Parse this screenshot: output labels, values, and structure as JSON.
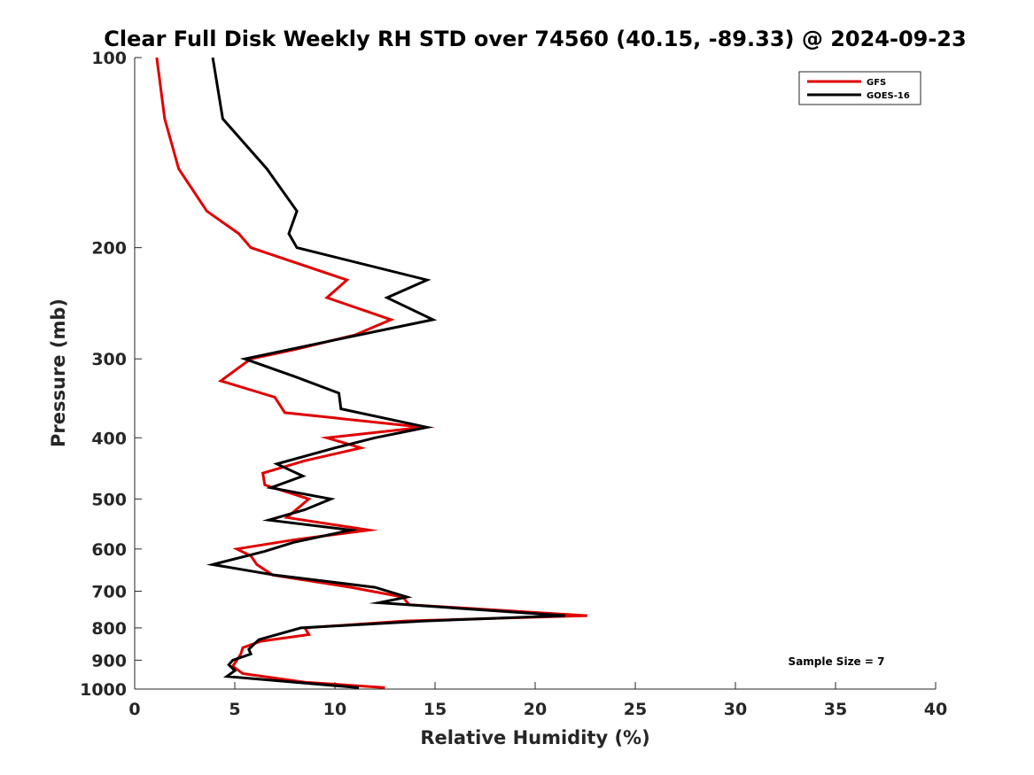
{
  "chart_data": {
    "type": "line",
    "title": "Clear Full Disk Weekly RH STD over 74560 (40.15, -89.33) @ 2024-09-23",
    "xlabel": "Relative Humidity (%)",
    "ylabel": "Pressure (mb)",
    "xlim": [
      0,
      40
    ],
    "ylim": [
      100,
      1000
    ],
    "y_scale": "log",
    "y_reversed": true,
    "x_ticks": [
      0,
      5,
      10,
      15,
      20,
      25,
      30,
      35,
      40
    ],
    "y_ticks": [
      100,
      200,
      300,
      400,
      500,
      600,
      700,
      800,
      900,
      1000
    ],
    "grid": false,
    "legend_position": "top-right",
    "annotation": "Sample Size = 7",
    "series": [
      {
        "name": "GFS",
        "color": "#e00000",
        "points": [
          [
            1.1,
            100
          ],
          [
            1.5,
            125
          ],
          [
            2.2,
            150
          ],
          [
            3.6,
            175
          ],
          [
            5.2,
            190
          ],
          [
            5.8,
            200
          ],
          [
            10.6,
            225
          ],
          [
            9.6,
            240
          ],
          [
            12.8,
            260
          ],
          [
            11.0,
            275
          ],
          [
            8.0,
            290
          ],
          [
            5.8,
            300
          ],
          [
            4.3,
            325
          ],
          [
            7.0,
            345
          ],
          [
            7.5,
            365
          ],
          [
            14.4,
            385
          ],
          [
            9.6,
            400
          ],
          [
            11.3,
            415
          ],
          [
            8.5,
            435
          ],
          [
            6.4,
            455
          ],
          [
            6.5,
            475
          ],
          [
            8.7,
            500
          ],
          [
            7.6,
            535
          ],
          [
            11.7,
            560
          ],
          [
            8.0,
            580
          ],
          [
            5.1,
            600
          ],
          [
            5.8,
            615
          ],
          [
            6.1,
            635
          ],
          [
            6.9,
            660
          ],
          [
            10.8,
            690
          ],
          [
            13.4,
            715
          ],
          [
            13.7,
            735
          ],
          [
            22.6,
            765
          ],
          [
            13.5,
            780
          ],
          [
            8.5,
            800
          ],
          [
            8.7,
            820
          ],
          [
            6.3,
            840
          ],
          [
            5.4,
            860
          ],
          [
            5.3,
            880
          ],
          [
            5.1,
            900
          ],
          [
            4.9,
            920
          ],
          [
            5.4,
            945
          ],
          [
            8.5,
            975
          ],
          [
            12.5,
            995
          ]
        ]
      },
      {
        "name": "GOES-16",
        "color": "#000000",
        "points": [
          [
            3.9,
            100
          ],
          [
            4.4,
            125
          ],
          [
            6.6,
            150
          ],
          [
            8.1,
            175
          ],
          [
            7.7,
            190
          ],
          [
            8.1,
            200
          ],
          [
            14.6,
            225
          ],
          [
            12.6,
            240
          ],
          [
            14.9,
            260
          ],
          [
            10.0,
            280
          ],
          [
            5.5,
            300
          ],
          [
            8.0,
            320
          ],
          [
            10.2,
            340
          ],
          [
            10.3,
            360
          ],
          [
            14.6,
            385
          ],
          [
            12.0,
            400
          ],
          [
            10.0,
            415
          ],
          [
            7.1,
            440
          ],
          [
            8.4,
            460
          ],
          [
            6.8,
            480
          ],
          [
            9.8,
            500
          ],
          [
            8.5,
            520
          ],
          [
            6.7,
            540
          ],
          [
            10.8,
            560
          ],
          [
            8.0,
            585
          ],
          [
            6.5,
            605
          ],
          [
            3.9,
            635
          ],
          [
            7.0,
            660
          ],
          [
            12.0,
            690
          ],
          [
            13.6,
            715
          ],
          [
            12.2,
            730
          ],
          [
            21.5,
            765
          ],
          [
            14.5,
            780
          ],
          [
            8.3,
            800
          ],
          [
            6.2,
            835
          ],
          [
            5.7,
            865
          ],
          [
            5.8,
            880
          ],
          [
            4.9,
            900
          ],
          [
            4.7,
            915
          ],
          [
            5.0,
            935
          ],
          [
            4.6,
            955
          ],
          [
            11.2,
            995
          ]
        ]
      }
    ]
  }
}
